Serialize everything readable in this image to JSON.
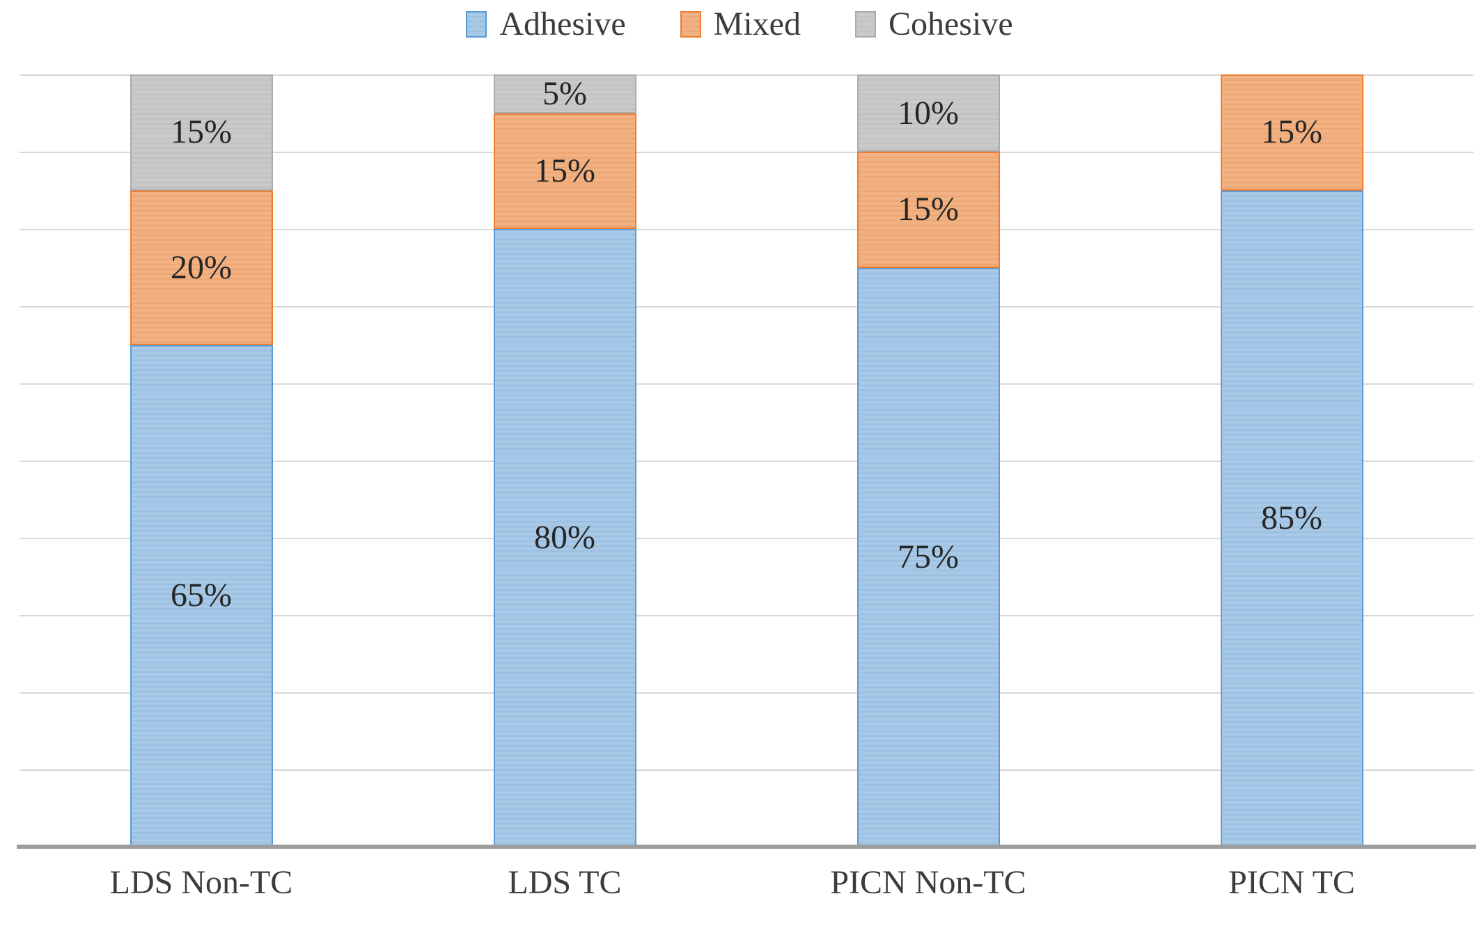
{
  "chart_data": {
    "type": "bar",
    "stacked": true,
    "orientation": "vertical",
    "title": "",
    "xlabel": "",
    "ylabel": "",
    "ylim": [
      0,
      100
    ],
    "grid": true,
    "gridline_interval": 10,
    "legend_position": "top-center",
    "categories": [
      "LDS Non-TC",
      "LDS TC",
      "PICN Non-TC",
      "PICN TC"
    ],
    "series": [
      {
        "name": "Adhesive",
        "values": [
          65,
          80,
          75,
          85
        ],
        "fill": "#A7C9E7",
        "stripe": "#9BBFDF",
        "border": "#5B9BD5"
      },
      {
        "name": "Mixed",
        "values": [
          20,
          15,
          15,
          15
        ],
        "fill": "#F2B183",
        "stripe": "#EDA671",
        "border": "#ED7D31"
      },
      {
        "name": "Cohesive",
        "values": [
          15,
          5,
          10,
          0
        ],
        "fill": "#C9C9C9",
        "stripe": "#C1C1C1",
        "border": "#ABABAB"
      }
    ],
    "value_label_format": "{v}%",
    "colors": {
      "gridline": "#D8D8D8",
      "axis_line": "#9D9D9D",
      "value_label_text": "#262626",
      "category_label_text": "#3C3C3C",
      "legend_text": "#3C3C3C",
      "background": "#FFFFFF"
    }
  }
}
